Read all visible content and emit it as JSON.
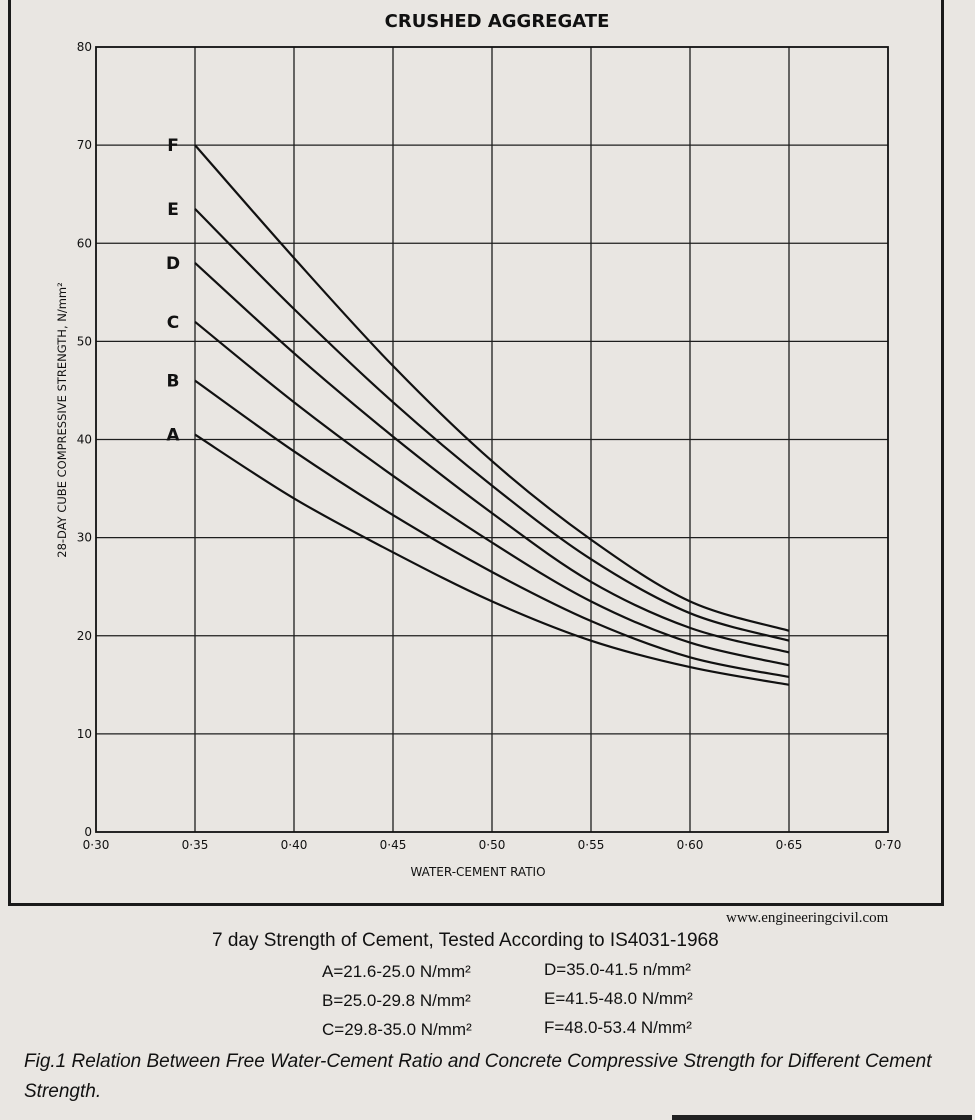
{
  "chart_data": {
    "type": "line",
    "title": "CRUSHED AGGREGATE",
    "xlabel": "WATER-CEMENT RATIO",
    "ylabel": "28-DAY CUBE COMPRESSIVE STRENGTH, N/mm²",
    "xlim": [
      0.3,
      0.7
    ],
    "ylim": [
      0,
      80
    ],
    "x_ticks": [
      "0·30",
      "0·35",
      "0·40",
      "0·45",
      "0·50",
      "0·55",
      "0·60",
      "0·65",
      "0·70"
    ],
    "y_ticks": [
      "0",
      "10",
      "20",
      "30",
      "40",
      "50",
      "60",
      "70",
      "80"
    ],
    "grid": true,
    "series": [
      {
        "name": "A",
        "x": [
          0.35,
          0.4,
          0.45,
          0.5,
          0.55,
          0.6,
          0.65
        ],
        "values": [
          40.5,
          34.0,
          28.5,
          23.5,
          19.5,
          16.8,
          15.0
        ]
      },
      {
        "name": "B",
        "x": [
          0.35,
          0.4,
          0.45,
          0.5,
          0.55,
          0.6,
          0.65
        ],
        "values": [
          46.0,
          38.8,
          32.3,
          26.5,
          21.5,
          17.8,
          15.8
        ]
      },
      {
        "name": "C",
        "x": [
          0.35,
          0.4,
          0.45,
          0.5,
          0.55,
          0.6,
          0.65
        ],
        "values": [
          52.0,
          43.8,
          36.3,
          29.5,
          23.5,
          19.3,
          17.0
        ]
      },
      {
        "name": "D",
        "x": [
          0.35,
          0.4,
          0.45,
          0.5,
          0.55,
          0.6,
          0.65
        ],
        "values": [
          58.0,
          48.8,
          40.3,
          32.5,
          25.5,
          20.8,
          18.3
        ]
      },
      {
        "name": "E",
        "x": [
          0.35,
          0.4,
          0.45,
          0.5,
          0.55,
          0.6,
          0.65
        ],
        "values": [
          63.5,
          53.3,
          43.8,
          35.3,
          27.8,
          22.3,
          19.5
        ]
      },
      {
        "name": "F",
        "x": [
          0.35,
          0.4,
          0.45,
          0.5,
          0.55,
          0.6,
          0.65
        ],
        "values": [
          70.0,
          58.5,
          47.5,
          37.8,
          29.8,
          23.5,
          20.5
        ]
      }
    ]
  },
  "source_text": "www.engineeringcivil.com",
  "legend": {
    "title": "7 day Strength of Cement, Tested According to IS4031-1968",
    "items": [
      {
        "key": "A",
        "text": "A=21.6-25.0 N/mm²"
      },
      {
        "key": "B",
        "text": "B=25.0-29.8 N/mm²"
      },
      {
        "key": "C",
        "text": "C=29.8-35.0 N/mm²"
      },
      {
        "key": "D",
        "text": "D=35.0-41.5 n/mm²"
      },
      {
        "key": "E",
        "text": "E=41.5-48.0 N/mm²"
      },
      {
        "key": "F",
        "text": "F=48.0-53.4 N/mm²"
      }
    ]
  },
  "caption": "Fig.1 Relation Between Free Water-Cement Ratio and Concrete Compressive Strength for Different Cement Strength.",
  "colors": {
    "background": "#e9e6e2",
    "ink": "#111111",
    "grid": "#1e1e1e"
  }
}
